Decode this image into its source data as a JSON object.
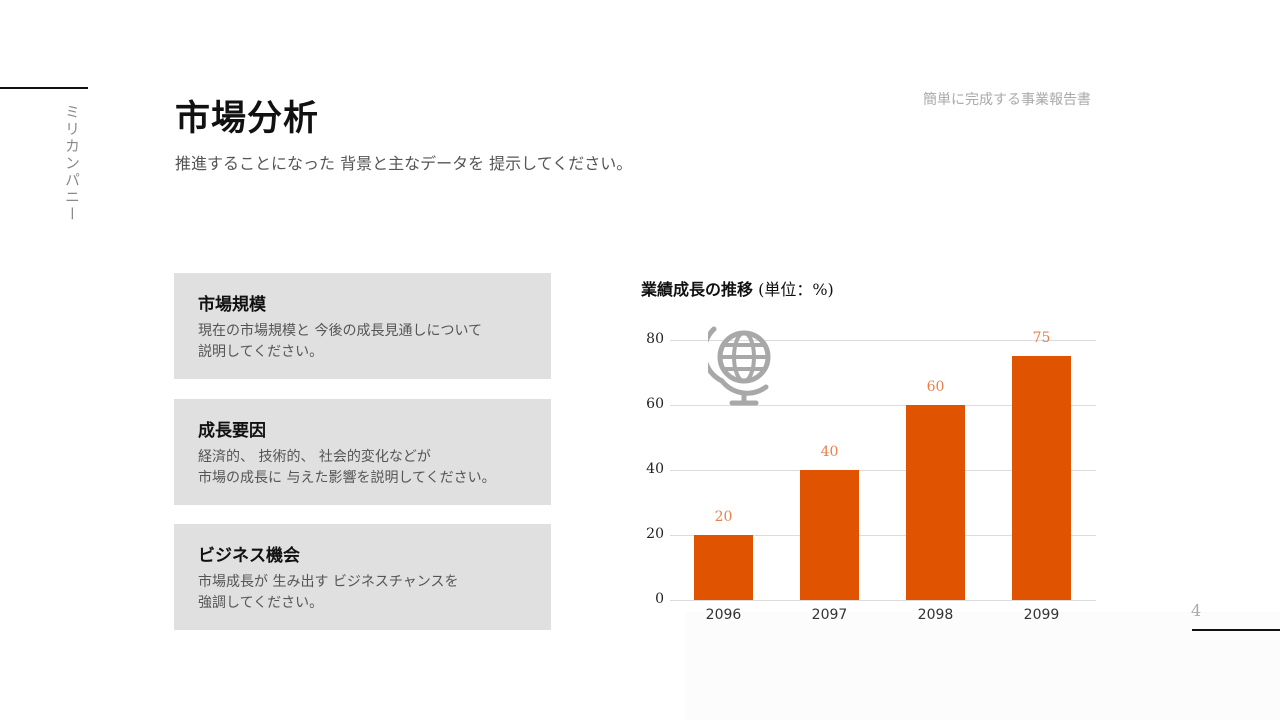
{
  "header": {
    "company_vertical": "ミリカンパニー",
    "title": "市場分析",
    "subtitle": "推進することになった 背景と主なデータを 提示してください。",
    "document_label": "簡単に完成する事業報告書",
    "page_number": "4"
  },
  "cards": [
    {
      "title": "市場規模",
      "description": "現在の市場規模と 今後の成長見通しについて\n説明してください。"
    },
    {
      "title": "成長要因",
      "description": "経済的、 技術的、 社会的変化などが\n市場の成長に 与えた影響を説明してください。"
    },
    {
      "title": "ビジネス機会",
      "description": "市場成長が 生み出す ビジネスチャンスを\n強調してください。"
    }
  ],
  "chart": {
    "title_bold": "業績成長の推移",
    "title_unit": " (単位：%)",
    "icon": "globe-icon"
  },
  "colors": {
    "bar": "#e05300",
    "bar_label": "#e8804a",
    "card_bg": "#e0e0e0",
    "gridline": "#dcdcdc"
  },
  "chart_data": {
    "type": "bar",
    "title": "業績成長の推移 (単位：%)",
    "categories": [
      "2096",
      "2097",
      "2098",
      "2099"
    ],
    "values": [
      20,
      40,
      60,
      75
    ],
    "xlabel": "",
    "ylabel": "",
    "ylim": [
      0,
      80
    ],
    "yticks": [
      0,
      20,
      40,
      60,
      80
    ],
    "grid": true,
    "data_labels": true,
    "legend": "none"
  }
}
